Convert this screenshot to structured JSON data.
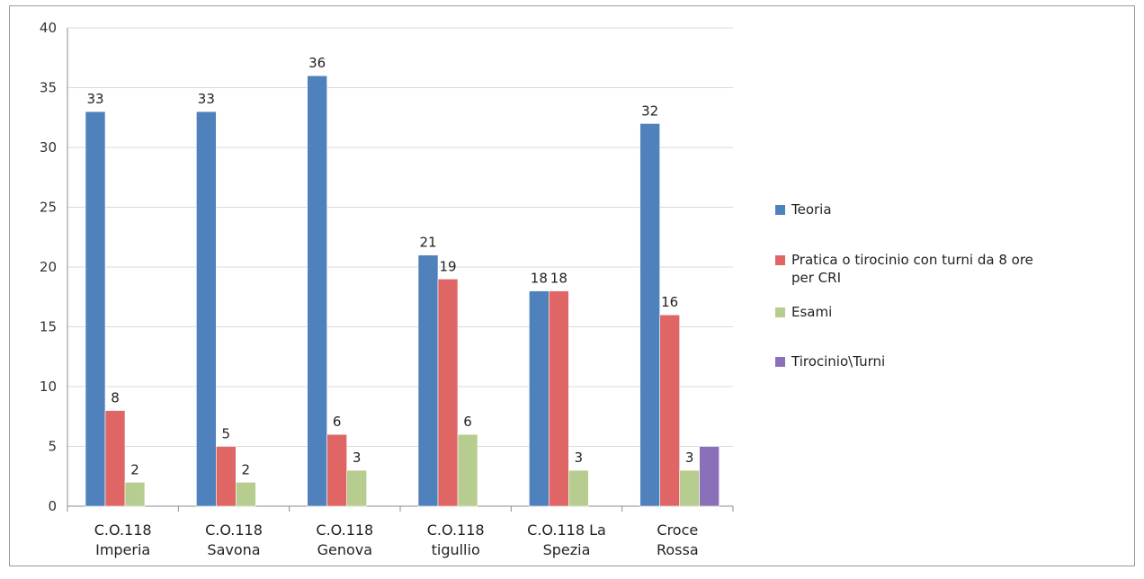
{
  "chart_data": {
    "type": "bar",
    "categories": [
      [
        "C.O.118",
        "Imperia"
      ],
      [
        "C.O.118",
        "Savona"
      ],
      [
        "C.O.118",
        "Genova"
      ],
      [
        "C.O.118",
        "tigullio"
      ],
      [
        "C.O.118 La",
        "Spezia"
      ],
      [
        "Croce",
        "Rossa"
      ]
    ],
    "series": [
      {
        "name": "Teoria",
        "color": "#4f81bd",
        "values": [
          33,
          33,
          36,
          21,
          18,
          32
        ],
        "labels": [
          "33",
          "33",
          "36",
          "21",
          "18",
          "32"
        ]
      },
      {
        "name": "Pratica o tirocinio con turni da 8 ore per CRI",
        "color": "#e06666",
        "values": [
          8,
          5,
          6,
          19,
          18,
          16
        ],
        "labels": [
          "8",
          "5",
          "6",
          "19",
          "18",
          "16"
        ]
      },
      {
        "name": "Esami",
        "color": "#b7cc8f",
        "values": [
          2,
          2,
          3,
          6,
          3,
          3
        ],
        "labels": [
          "2",
          "2",
          "3",
          "6",
          "3",
          "3"
        ]
      },
      {
        "name": "Tirocinio\\Turni",
        "color": "#8a70b8",
        "values": [
          null,
          null,
          null,
          null,
          null,
          5
        ],
        "labels": [
          "",
          "",
          "",
          "",
          "",
          ""
        ]
      }
    ],
    "ylim": [
      0,
      40
    ],
    "yticks": [
      0,
      5,
      10,
      15,
      20,
      25,
      30,
      35,
      40
    ],
    "grid": true,
    "legend_position": "right",
    "legend_lines": [
      [
        "Teoria"
      ],
      [
        "Pratica o tirocinio con turni da 8 ore",
        "per CRI"
      ],
      [
        "Esami"
      ],
      [
        "Tirocinio\\Turni"
      ]
    ]
  }
}
